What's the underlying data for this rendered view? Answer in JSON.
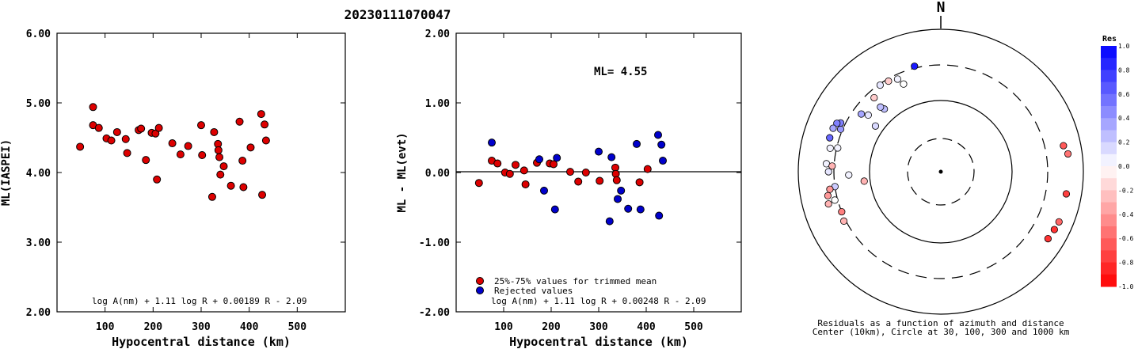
{
  "title": "20230111070047",
  "chart_data": [
    {
      "type": "scatter",
      "xlabel": "Hypocentral distance (km)",
      "ylabel": "ML(IASPEI)",
      "xlim": [
        0,
        600
      ],
      "ylim": [
        2.0,
        6.0
      ],
      "xticks": [
        "100",
        "200",
        "300",
        "400",
        "500"
      ],
      "yticks": [
        "2.00",
        "3.00",
        "4.00",
        "5.00",
        "6.00"
      ],
      "formula": "log A(nm) + 1.11 log R + 0.00189 R - 2.09",
      "color": "#dd0000",
      "points": [
        [
          48,
          4.37
        ],
        [
          75,
          4.94
        ],
        [
          75,
          4.68
        ],
        [
          87,
          4.64
        ],
        [
          103,
          4.49
        ],
        [
          113,
          4.46
        ],
        [
          125,
          4.58
        ],
        [
          143,
          4.48
        ],
        [
          146,
          4.28
        ],
        [
          170,
          4.61
        ],
        [
          175,
          4.63
        ],
        [
          185,
          4.18
        ],
        [
          197,
          4.57
        ],
        [
          205,
          4.56
        ],
        [
          208,
          3.9
        ],
        [
          212,
          4.64
        ],
        [
          240,
          4.42
        ],
        [
          257,
          4.26
        ],
        [
          273,
          4.38
        ],
        [
          300,
          4.68
        ],
        [
          302,
          4.25
        ],
        [
          323,
          3.65
        ],
        [
          327,
          4.58
        ],
        [
          335,
          4.41
        ],
        [
          336,
          4.32
        ],
        [
          338,
          4.22
        ],
        [
          340,
          3.97
        ],
        [
          347,
          4.09
        ],
        [
          362,
          3.81
        ],
        [
          380,
          4.73
        ],
        [
          386,
          4.17
        ],
        [
          388,
          3.79
        ],
        [
          403,
          4.36
        ],
        [
          425,
          4.84
        ],
        [
          427,
          3.68
        ],
        [
          432,
          4.69
        ],
        [
          435,
          4.46
        ]
      ]
    },
    {
      "type": "scatter",
      "xlabel": "Hypocentral distance (km)",
      "ylabel": "ML - ML(evt)",
      "xlim": [
        0,
        600
      ],
      "ylim": [
        -2.0,
        2.0
      ],
      "xticks": [
        "100",
        "200",
        "300",
        "400",
        "500"
      ],
      "yticks": [
        "-2.00",
        "-1.00",
        "0.00",
        "1.00",
        "2.00"
      ],
      "ml_label": "ML= 4.55",
      "formula": "log A(nm) + 1.11 log R + 0.00248 R - 2.09",
      "legend": [
        {
          "label": "25%-75% values for trimmed mean",
          "color": "#dd0000"
        },
        {
          "label": "Rejected values",
          "color": "#0000cc"
        }
      ],
      "series": [
        {
          "color": "#dd0000",
          "points": [
            [
              48,
              -0.15
            ],
            [
              75,
              0.17
            ],
            [
              87,
              0.13
            ],
            [
              103,
              0.0
            ],
            [
              113,
              -0.02
            ],
            [
              125,
              0.11
            ],
            [
              143,
              0.03
            ],
            [
              146,
              -0.17
            ],
            [
              170,
              0.14
            ],
            [
              197,
              0.13
            ],
            [
              205,
              0.12
            ],
            [
              240,
              0.01
            ],
            [
              257,
              -0.13
            ],
            [
              273,
              0.0
            ],
            [
              302,
              -0.12
            ],
            [
              335,
              0.07
            ],
            [
              336,
              -0.02
            ],
            [
              338,
              -0.11
            ],
            [
              386,
              -0.14
            ],
            [
              403,
              0.05
            ]
          ]
        },
        {
          "color": "#0000cc",
          "points": [
            [
              75,
              0.43
            ],
            [
              175,
              0.19
            ],
            [
              185,
              -0.26
            ],
            [
              208,
              -0.53
            ],
            [
              212,
              0.21
            ],
            [
              300,
              0.3
            ],
            [
              323,
              -0.7
            ],
            [
              327,
              0.22
            ],
            [
              340,
              -0.38
            ],
            [
              347,
              -0.26
            ],
            [
              362,
              -0.52
            ],
            [
              380,
              0.41
            ],
            [
              388,
              -0.53
            ],
            [
              425,
              0.54
            ],
            [
              427,
              -0.62
            ],
            [
              432,
              0.4
            ],
            [
              435,
              0.17
            ]
          ]
        }
      ]
    },
    {
      "type": "polar-scatter",
      "north_label": "N",
      "caption_line1": "Residuals as a function of azimuth and distance",
      "caption_line2": "Center (10km), Circle at 30, 100, 300 and 1000 km",
      "colorbar_title": "Res",
      "colorbar_ticks": [
        "1.0",
        "0.8",
        "0.6",
        "0.4",
        "0.2",
        "0.0",
        "-0.2",
        "-0.4",
        "-0.6",
        "-0.8",
        "-1.0"
      ],
      "points": [
        {
          "az": 346,
          "dist": 320,
          "res": 0.9
        },
        {
          "az": 335,
          "dist": 260,
          "res": 0.05
        },
        {
          "az": 330,
          "dist": 280,
          "res": -0.2
        },
        {
          "az": 325,
          "dist": 290,
          "res": 0.1
        },
        {
          "az": 337,
          "dist": 210,
          "res": 0.0
        },
        {
          "az": 318,
          "dist": 240,
          "res": -0.2
        },
        {
          "az": 318,
          "dist": 150,
          "res": 0.25
        },
        {
          "az": 317,
          "dist": 170,
          "res": 0.25
        },
        {
          "az": 305,
          "dist": 130,
          "res": 0.15
        },
        {
          "az": 308,
          "dist": 190,
          "res": 0.1
        },
        {
          "az": 306,
          "dist": 230,
          "res": 0.35
        },
        {
          "az": 293,
          "dist": 320,
          "res": 0.4
        },
        {
          "az": 296,
          "dist": 350,
          "res": 0.5
        },
        {
          "az": 295,
          "dist": 390,
          "res": 0.5
        },
        {
          "az": 292,
          "dist": 410,
          "res": 0.35
        },
        {
          "az": 287,
          "dist": 410,
          "res": 0.6
        },
        {
          "az": 282,
          "dist": 370,
          "res": 0.05
        },
        {
          "az": 283,
          "dist": 290,
          "res": 0.05
        },
        {
          "az": 274,
          "dist": 390,
          "res": 0.05
        },
        {
          "az": 270,
          "dist": 360,
          "res": 0.1
        },
        {
          "az": 273,
          "dist": 320,
          "res": -0.3
        },
        {
          "az": 268,
          "dist": 190,
          "res": 0.05
        },
        {
          "az": 262,
          "dist": 300,
          "res": 0.2
        },
        {
          "az": 261,
          "dist": 360,
          "res": -0.4
        },
        {
          "az": 258,
          "dist": 400,
          "res": -0.4
        },
        {
          "az": 255,
          "dist": 330,
          "res": 0.0
        },
        {
          "az": 254,
          "dist": 420,
          "res": -0.3
        },
        {
          "az": 248,
          "dist": 300,
          "res": -0.5
        },
        {
          "az": 243,
          "dist": 320,
          "res": -0.3
        },
        {
          "az": 263,
          "dist": 120,
          "res": -0.3
        },
        {
          "az": 78,
          "dist": 560,
          "res": -0.65
        },
        {
          "az": 82,
          "dist": 620,
          "res": -0.55
        },
        {
          "az": 100,
          "dist": 600,
          "res": -0.75
        },
        {
          "az": 113,
          "dist": 620,
          "res": -0.6
        },
        {
          "az": 117,
          "dist": 600,
          "res": -0.8
        },
        {
          "az": 122,
          "dist": 580,
          "res": -0.8
        }
      ]
    }
  ]
}
